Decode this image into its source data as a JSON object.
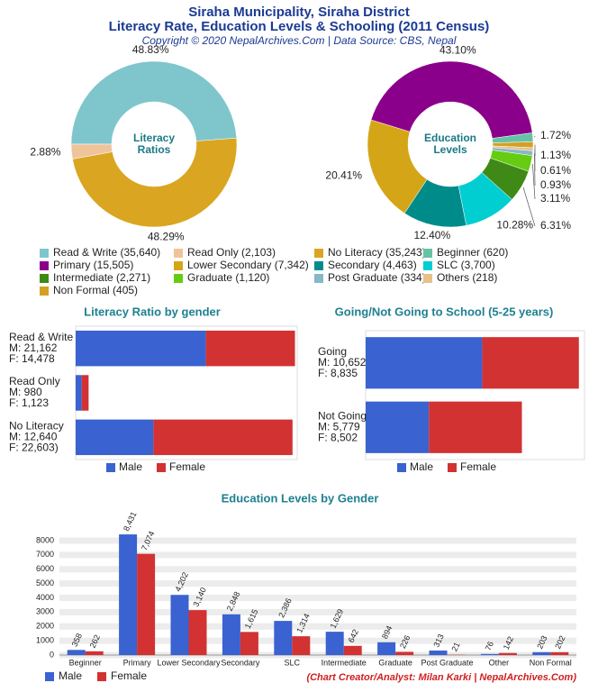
{
  "header": {
    "title": "Siraha Municipality, Siraha District",
    "subtitle": "Literacy Rate, Education Levels & Schooling (2011 Census)",
    "copyright": "Copyright © 2020 NepalArchives.Com | Data Source: CBS, Nepal"
  },
  "chart_data": [
    {
      "type": "pie",
      "donut": true,
      "title": [
        "Literacy",
        "Ratios"
      ],
      "values": [
        48.83,
        48.29,
        2.88
      ],
      "value_labels": [
        "48.83%",
        "48.29%",
        "2.88%"
      ],
      "colors": [
        "#7fc6cc",
        "#daa520",
        "#f0c49a"
      ]
    },
    {
      "type": "pie",
      "donut": true,
      "title": [
        "Education",
        "Levels"
      ],
      "values": [
        43.1,
        1.72,
        1.13,
        0.61,
        0.93,
        3.11,
        6.31,
        10.28,
        12.4,
        20.41
      ],
      "value_labels": [
        "43.10%",
        "1.72%",
        "1.13%",
        "0.61%",
        "0.93%",
        "3.11%",
        "6.31%",
        "10.28%",
        "12.40%",
        "20.41%"
      ],
      "colors": [
        "#8b008b",
        "#66c2a5",
        "#d4a020",
        "#e8c08a",
        "#86b8c8",
        "#66cc11",
        "#3f8a16",
        "#00ced1",
        "#008b8b",
        "#d4a617"
      ]
    },
    {
      "type": "hbar",
      "stacked": true,
      "title": "Literacy Ratio by gender",
      "categories": [
        "Read & Write",
        "Read Only",
        "No Literacy"
      ],
      "category_details": [
        [
          "M: 21,162",
          "F: 14,478"
        ],
        [
          "M: 980",
          "F: 1,123"
        ],
        [
          "M: 12,640",
          "F: 22,603)"
        ]
      ],
      "series": [
        {
          "name": "Male",
          "color": "#3a62d0",
          "values": [
            21162,
            980,
            12640
          ]
        },
        {
          "name": "Female",
          "color": "#d23232",
          "values": [
            14478,
            1123,
            22603
          ]
        }
      ],
      "xlim": [
        0,
        36000
      ]
    },
    {
      "type": "hbar",
      "stacked": true,
      "title": "Going/Not Going to School (5-25 years)",
      "categories": [
        "Going",
        "Not Going"
      ],
      "category_details": [
        [
          "M: 10,652",
          "F: 8,835"
        ],
        [
          "M: 5,779",
          "F: 8,502"
        ]
      ],
      "series": [
        {
          "name": "Male",
          "color": "#3a62d0",
          "values": [
            10652,
            5779
          ]
        },
        {
          "name": "Female",
          "color": "#d23232",
          "values": [
            8835,
            8502
          ]
        }
      ],
      "xlim": [
        0,
        20000
      ]
    },
    {
      "type": "bar",
      "title": "Education Levels by Gender",
      "categories": [
        "Beginner",
        "Primary",
        "Lower Secondary",
        "Secondary",
        "SLC",
        "Intermediate",
        "Graduate",
        "Post Graduate",
        "Other",
        "Non Formal"
      ],
      "series": [
        {
          "name": "Male",
          "color": "#3a62d0",
          "values": [
            358,
            8431,
            4202,
            2848,
            2386,
            1629,
            894,
            313,
            76,
            203
          ],
          "value_labels": [
            "358",
            "8,431",
            "4,202",
            "2,848",
            "2,386",
            "1,629",
            "894",
            "313",
            "76",
            "203"
          ]
        },
        {
          "name": "Female",
          "color": "#d23232",
          "values": [
            262,
            7074,
            3140,
            1615,
            1314,
            642,
            226,
            21,
            142,
            202
          ],
          "value_labels": [
            "262",
            "7,074",
            "3,140",
            "1,615",
            "1,314",
            "642",
            "226",
            "21",
            "142",
            "202"
          ]
        }
      ],
      "ylim": [
        0,
        8500
      ],
      "yticks": [
        0,
        1000,
        2000,
        3000,
        4000,
        5000,
        6000,
        7000,
        8000
      ],
      "grid": true
    }
  ],
  "legend": [
    {
      "label": "Read & Write (35,640)",
      "color": "#7fc6cc"
    },
    {
      "label": "Read Only (2,103)",
      "color": "#f0c49a"
    },
    {
      "label": "No Literacy (35,243)",
      "color": "#daa520"
    },
    {
      "label": "Beginner (620)",
      "color": "#66c2a5"
    },
    {
      "label": "Primary (15,505)",
      "color": "#8b008b"
    },
    {
      "label": "Lower Secondary (7,342)",
      "color": "#d4a617"
    },
    {
      "label": "Secondary (4,463)",
      "color": "#008b8b"
    },
    {
      "label": "SLC (3,700)",
      "color": "#00ced1"
    },
    {
      "label": "Intermediate (2,271)",
      "color": "#3f8a16"
    },
    {
      "label": "Graduate (1,120)",
      "color": "#66cc11"
    },
    {
      "label": "Post Graduate (334)",
      "color": "#86b8c8"
    },
    {
      "label": "Others (218)",
      "color": "#e8c08a"
    },
    {
      "label": "Non Formal (405)",
      "color": "#d4a020"
    }
  ],
  "footer": "(Chart Creator/Analyst: Milan Karki | NepalArchives.Com)"
}
